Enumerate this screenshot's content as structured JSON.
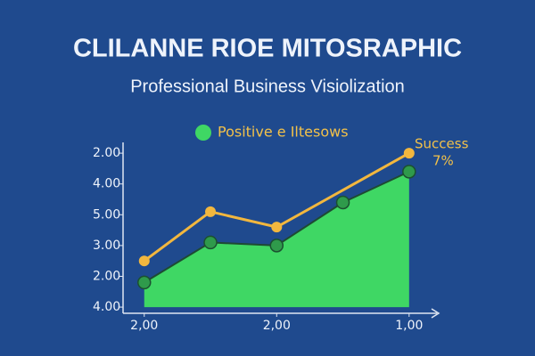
{
  "chart_data": {
    "type": "area",
    "title": "CLILANNE RIOE MITOSRAPHIC",
    "subtitle": "Professional Business Visiolization",
    "annotation": [
      "Success",
      "7%"
    ],
    "legend": "top",
    "grid": false,
    "xlim": [
      -0.32,
      4.42
    ],
    "ylim": [
      -0.2,
      5.35
    ],
    "xticks": [
      {
        "value": 0,
        "label": "2,00"
      },
      {
        "value": 2,
        "label": "2,00"
      },
      {
        "value": 4,
        "label": "1,00"
      }
    ],
    "yticks": [
      {
        "value": 0,
        "label": "4.00"
      },
      {
        "value": 1,
        "label": "2.00"
      },
      {
        "value": 2,
        "label": "3.00"
      },
      {
        "value": 3,
        "label": "5.00"
      },
      {
        "value": 4,
        "label": "4.00"
      },
      {
        "value": 5,
        "label": "2.00"
      }
    ],
    "series": [
      {
        "name": "Positive e Iltesows",
        "color": "#3fd764",
        "x": [
          0,
          1,
          2,
          3,
          4
        ],
        "values": [
          0.8,
          2.1,
          2.0,
          3.4,
          4.4
        ]
      },
      {
        "color": "#f2b73e",
        "x": [
          0,
          1,
          2,
          4
        ],
        "values": [
          1.5,
          3.1,
          2.6,
          5.0
        ]
      }
    ]
  }
}
